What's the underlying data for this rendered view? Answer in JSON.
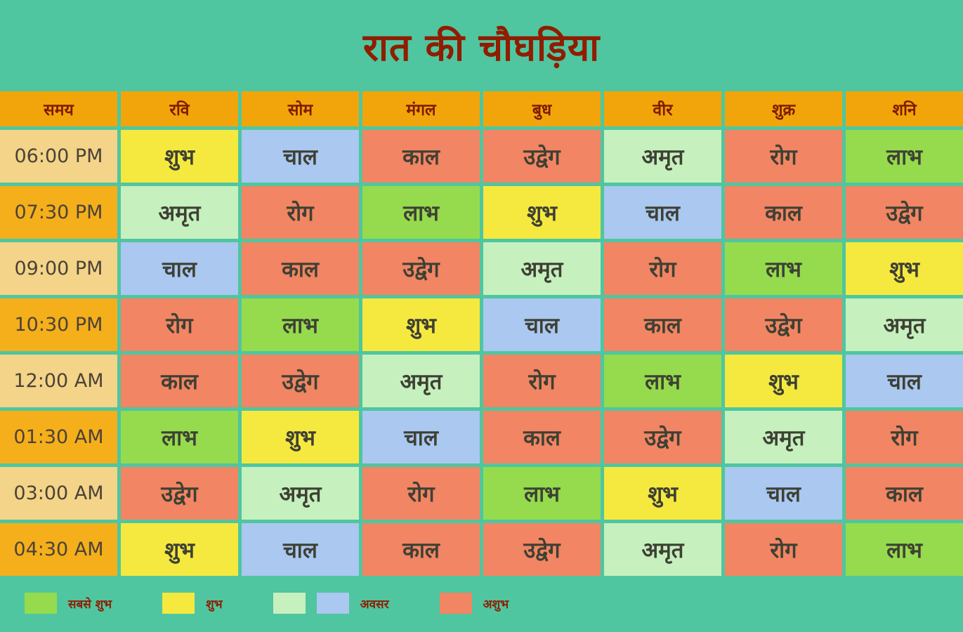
{
  "chart_data": {
    "type": "table",
    "title": "रात की चौघड़िया",
    "columns": [
      "समय",
      "रवि",
      "सोम",
      "मंगल",
      "बुध",
      "वीर",
      "शुक्र",
      "शनि"
    ],
    "rows": [
      [
        "06:00 PM",
        "शुभ",
        "चाल",
        "काल",
        "उद्वेग",
        "अमृत",
        "रोग",
        "लाभ"
      ],
      [
        "07:30 PM",
        "अमृत",
        "रोग",
        "लाभ",
        "शुभ",
        "चाल",
        "काल",
        "उद्वेग"
      ],
      [
        "09:00 PM",
        "चाल",
        "काल",
        "उद्वेग",
        "अमृत",
        "रोग",
        "लाभ",
        "शुभ"
      ],
      [
        "10:30 PM",
        "रोग",
        "लाभ",
        "शुभ",
        "चाल",
        "काल",
        "उद्वेग",
        "अमृत"
      ],
      [
        "12:00 AM",
        "काल",
        "उद्वेग",
        "अमृत",
        "रोग",
        "लाभ",
        "शुभ",
        "चाल"
      ],
      [
        "01:30 AM",
        "लाभ",
        "शुभ",
        "चाल",
        "काल",
        "उद्वेग",
        "अमृत",
        "रोग"
      ],
      [
        "03:00 AM",
        "उद्वेग",
        "अमृत",
        "रोग",
        "लाभ",
        "शुभ",
        "चाल",
        "काल"
      ],
      [
        "04:30 AM",
        "शुभ",
        "चाल",
        "काल",
        "उद्वेग",
        "अमृत",
        "रोग",
        "लाभ"
      ]
    ],
    "legend": [
      {
        "swatches": [
          "#95DB4D"
        ],
        "label": "सबसे शुभ"
      },
      {
        "swatches": [
          "#F5E93F"
        ],
        "label": "शुभ"
      },
      {
        "swatches": [
          "#C6F0BE",
          "#AAC8F0"
        ],
        "label": "अवसर"
      },
      {
        "swatches": [
          "#F28563"
        ],
        "label": "अशुभ"
      }
    ]
  },
  "colors": {
    "theme": {
      "background": "#4FC6A0",
      "header-bg": "#F2A50A",
      "header-text": "#7E1B00",
      "title-text": "#8F1D00",
      "time-light": "#F3D488",
      "time-dark": "#F4AF1B",
      "cell-text": "#3E4034",
      "time-text": "#4B4237",
      "legend-text": "#8F1D00"
    },
    "category": {
      "शुभ": "#F5E93F",
      "चाल": "#AAC8F0",
      "काल": "#F28563",
      "उद्वेग": "#F28563",
      "अमृत": "#C6F0BE",
      "रोग": "#F28563",
      "लाभ": "#95DB4D"
    }
  }
}
